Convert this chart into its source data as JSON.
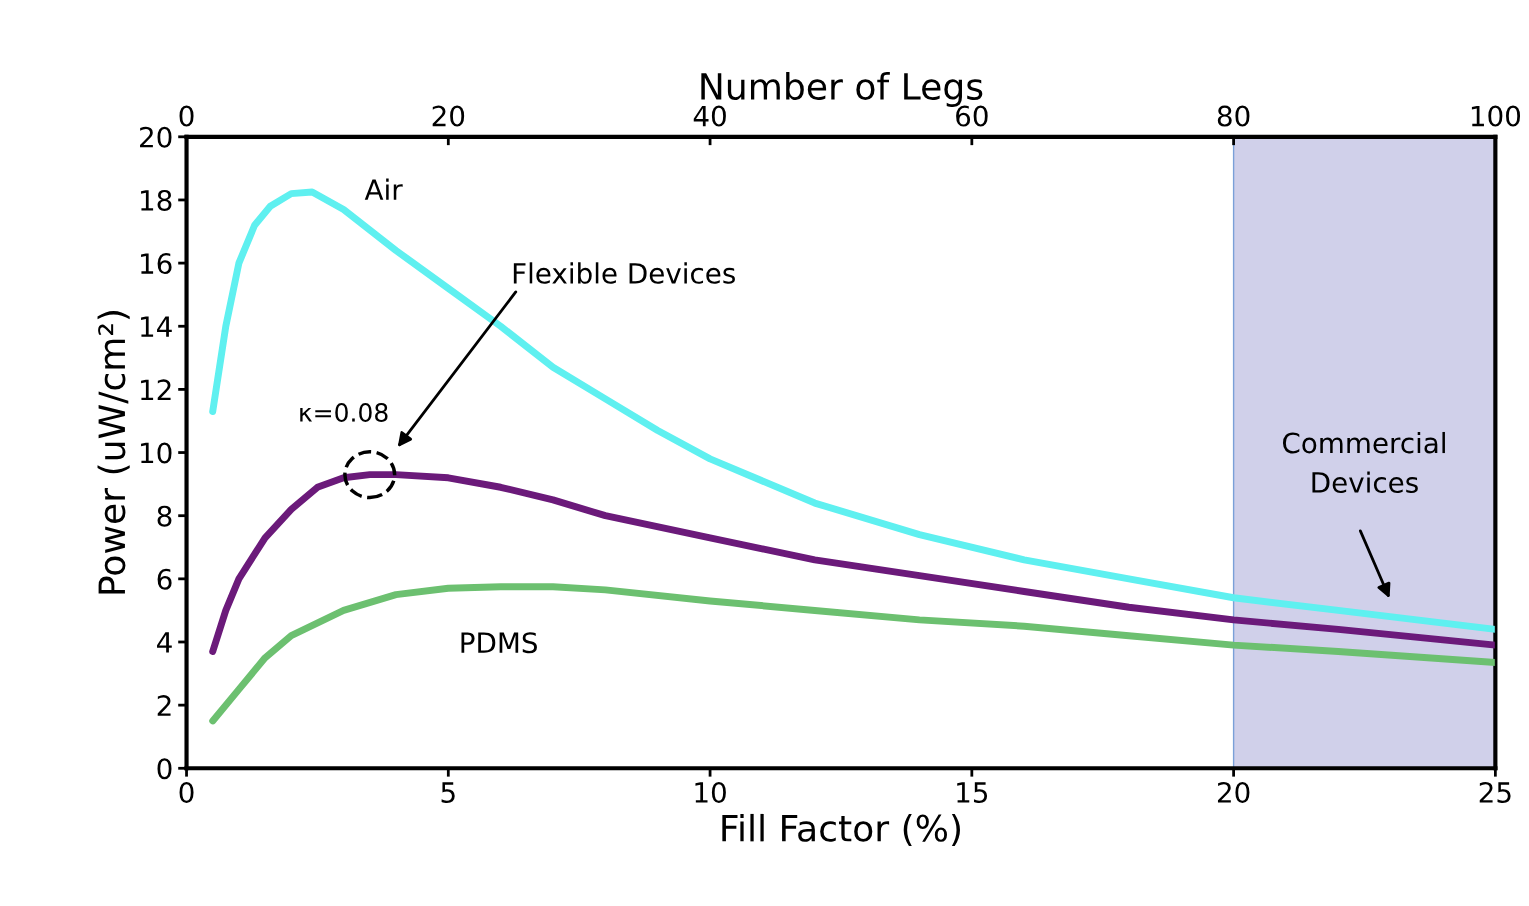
{
  "chart_data": {
    "type": "line",
    "xlabel": "Fill Factor (%)",
    "ylabel": "Power (uW/cm²)",
    "x2label": "Number of Legs",
    "xlim": [
      0,
      25
    ],
    "xticks": [
      0,
      5,
      10,
      15,
      20,
      25
    ],
    "ylim": [
      0,
      20
    ],
    "yticks": [
      0,
      2,
      4,
      6,
      8,
      10,
      12,
      14,
      16,
      18,
      20
    ],
    "x2lim": [
      0,
      100
    ],
    "x2ticks": [
      0,
      20,
      40,
      60,
      80,
      100
    ],
    "grid": false,
    "legend": false,
    "marker": "none",
    "line_style": "solid",
    "series": [
      {
        "name": "Air",
        "color": "#5ff0f0",
        "x": [
          0.5,
          0.75,
          1,
          1.3,
          1.6,
          2,
          2.4,
          3,
          4,
          5,
          6,
          7,
          8,
          9,
          10,
          12,
          14,
          16,
          18,
          20,
          22,
          25
        ],
        "values": [
          11.3,
          14,
          16,
          17.2,
          17.8,
          18.2,
          18.25,
          17.7,
          16.4,
          15.2,
          14,
          12.7,
          11.7,
          10.7,
          9.8,
          8.4,
          7.4,
          6.6,
          6,
          5.4,
          5,
          4.4
        ]
      },
      {
        "color": "#6b1a7a",
        "x": [
          0.5,
          0.75,
          1,
          1.5,
          2,
          2.5,
          3,
          3.5,
          4,
          5,
          6,
          7,
          8,
          10,
          12,
          14,
          16,
          18,
          20,
          22,
          25
        ],
        "values": [
          3.7,
          5,
          6,
          7.3,
          8.2,
          8.9,
          9.2,
          9.3,
          9.3,
          9.2,
          8.9,
          8.5,
          8,
          7.3,
          6.6,
          6.1,
          5.6,
          5.1,
          4.7,
          4.4,
          3.9
        ]
      },
      {
        "name": "PDMS",
        "color": "#6cc070",
        "x": [
          0.5,
          1,
          1.5,
          2,
          3,
          4,
          5,
          6,
          7,
          8,
          10,
          12,
          14,
          16,
          18,
          20,
          22,
          25
        ],
        "values": [
          1.5,
          2.5,
          3.5,
          4.2,
          5,
          5.5,
          5.7,
          5.75,
          5.75,
          5.65,
          5.3,
          5,
          4.7,
          4.5,
          4.2,
          3.9,
          3.7,
          3.35
        ]
      }
    ],
    "bands": [
      {
        "axis": "x",
        "from": 20,
        "to": 25,
        "label": "Commercial\nDevices",
        "color": "#d0d0ea"
      }
    ],
    "annotations": [
      {
        "text": "κ=0.08",
        "x": 3.5,
        "y": 9.3
      },
      "Flexible Devices"
    ]
  }
}
